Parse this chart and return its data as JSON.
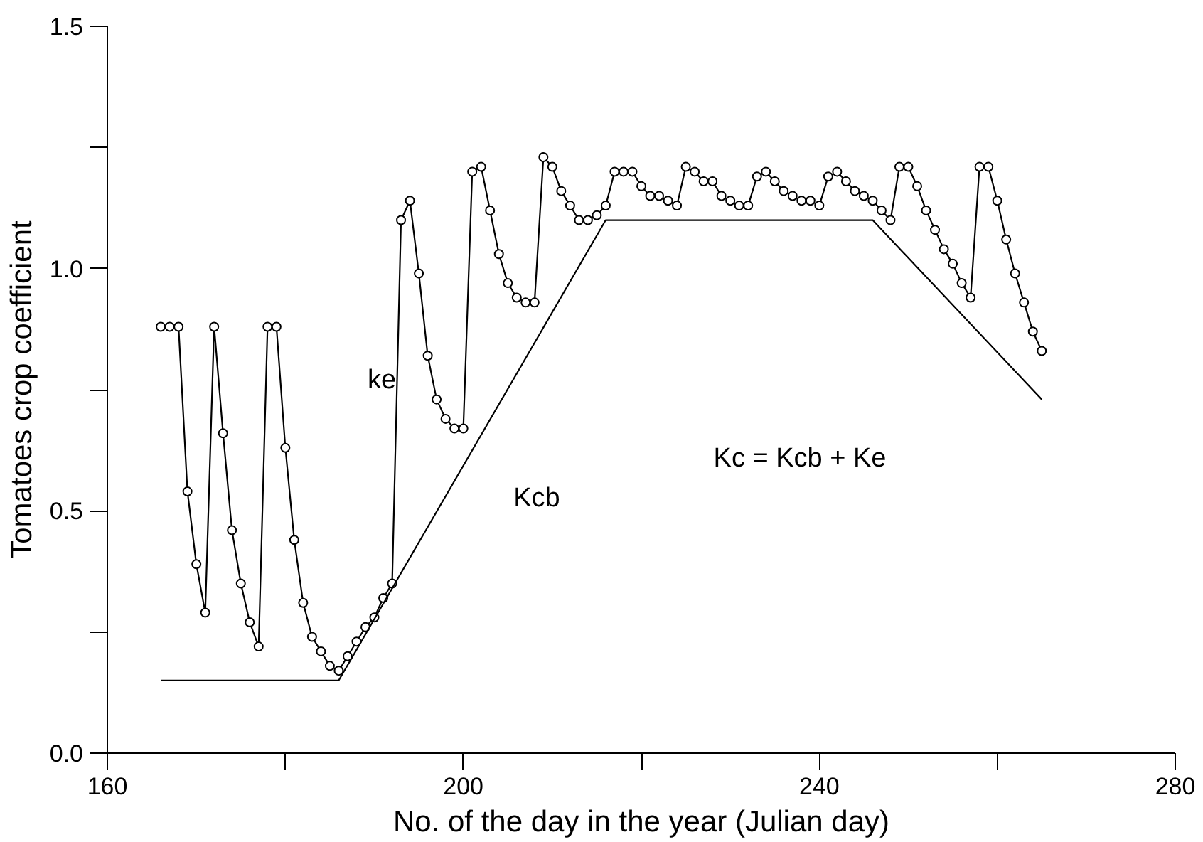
{
  "chart_data": {
    "type": "line",
    "xlabel": "No. of the day in the year (Julian day)",
    "ylabel": "Tomatoes crop coefficient",
    "xlim": [
      160,
      280
    ],
    "xticks": [
      160,
      {
        "value": 180,
        "label": null
      },
      200,
      {
        "value": 220,
        "label": null
      },
      240,
      {
        "value": 260,
        "label": null
      },
      280
    ],
    "ylim": [
      0,
      1.5
    ],
    "yticks": [
      {
        "value": 0,
        "label": "0.0"
      },
      {
        "value": 0.25,
        "label": null
      },
      0.5,
      {
        "value": 0.75,
        "label": null
      },
      {
        "value": 1,
        "label": "1.0"
      },
      {
        "value": 1.25,
        "label": null
      },
      1.5
    ],
    "grid": false,
    "series": [
      {
        "color": "#000000",
        "marker": "circle",
        "x": [
          166,
          167,
          168,
          169,
          170,
          171,
          172,
          173,
          174,
          175,
          176,
          177,
          178,
          179,
          180,
          181,
          182,
          183,
          184,
          185,
          186,
          187,
          188,
          189,
          190,
          191,
          192,
          193,
          194,
          195,
          196,
          197,
          198,
          199,
          200,
          201,
          202,
          203,
          204,
          205,
          206,
          207,
          208,
          209,
          210,
          211,
          212,
          213,
          214,
          215,
          216,
          217,
          218,
          219,
          220,
          221,
          222,
          223,
          224,
          225,
          226,
          227,
          228,
          229,
          230,
          231,
          232,
          233,
          234,
          235,
          236,
          237,
          238,
          239,
          240,
          241,
          242,
          243,
          244,
          245,
          246,
          247,
          248,
          249,
          250,
          251,
          252,
          253,
          254,
          255,
          256,
          257,
          258,
          259,
          260,
          261,
          262,
          263,
          264,
          265
        ],
        "values": [
          0.88,
          0.88,
          0.88,
          0.54,
          0.39,
          0.29,
          0.88,
          0.66,
          0.46,
          0.35,
          0.27,
          0.22,
          0.88,
          0.88,
          0.63,
          0.44,
          0.31,
          0.24,
          0.21,
          0.18,
          0.17,
          0.2,
          0.23,
          0.26,
          0.28,
          0.32,
          0.35,
          1.1,
          1.14,
          0.99,
          0.82,
          0.73,
          0.69,
          0.67,
          0.67,
          1.2,
          1.21,
          1.12,
          1.03,
          0.97,
          0.94,
          0.93,
          0.93,
          1.23,
          1.21,
          1.16,
          1.13,
          1.1,
          1.1,
          1.11,
          1.13,
          1.2,
          1.2,
          1.2,
          1.17,
          1.15,
          1.15,
          1.14,
          1.13,
          1.21,
          1.2,
          1.18,
          1.18,
          1.15,
          1.14,
          1.13,
          1.13,
          1.19,
          1.2,
          1.18,
          1.16,
          1.15,
          1.14,
          1.14,
          1.13,
          1.19,
          1.2,
          1.18,
          1.16,
          1.15,
          1.14,
          1.12,
          1.1,
          1.21,
          1.21,
          1.17,
          1.12,
          1.08,
          1.04,
          1.01,
          0.97,
          0.94,
          1.21,
          1.21,
          1.14,
          1.06,
          0.99,
          0.93,
          0.87,
          0.83
        ]
      },
      {
        "color": "#000000",
        "marker": "none",
        "x": [
          166,
          186,
          216,
          246,
          265
        ],
        "values": [
          0.15,
          0.15,
          1.1,
          1.1,
          0.73
        ]
      }
    ],
    "annotations": [
      "ke",
      "Kcb",
      "Kc = Kcb + Ke"
    ]
  }
}
